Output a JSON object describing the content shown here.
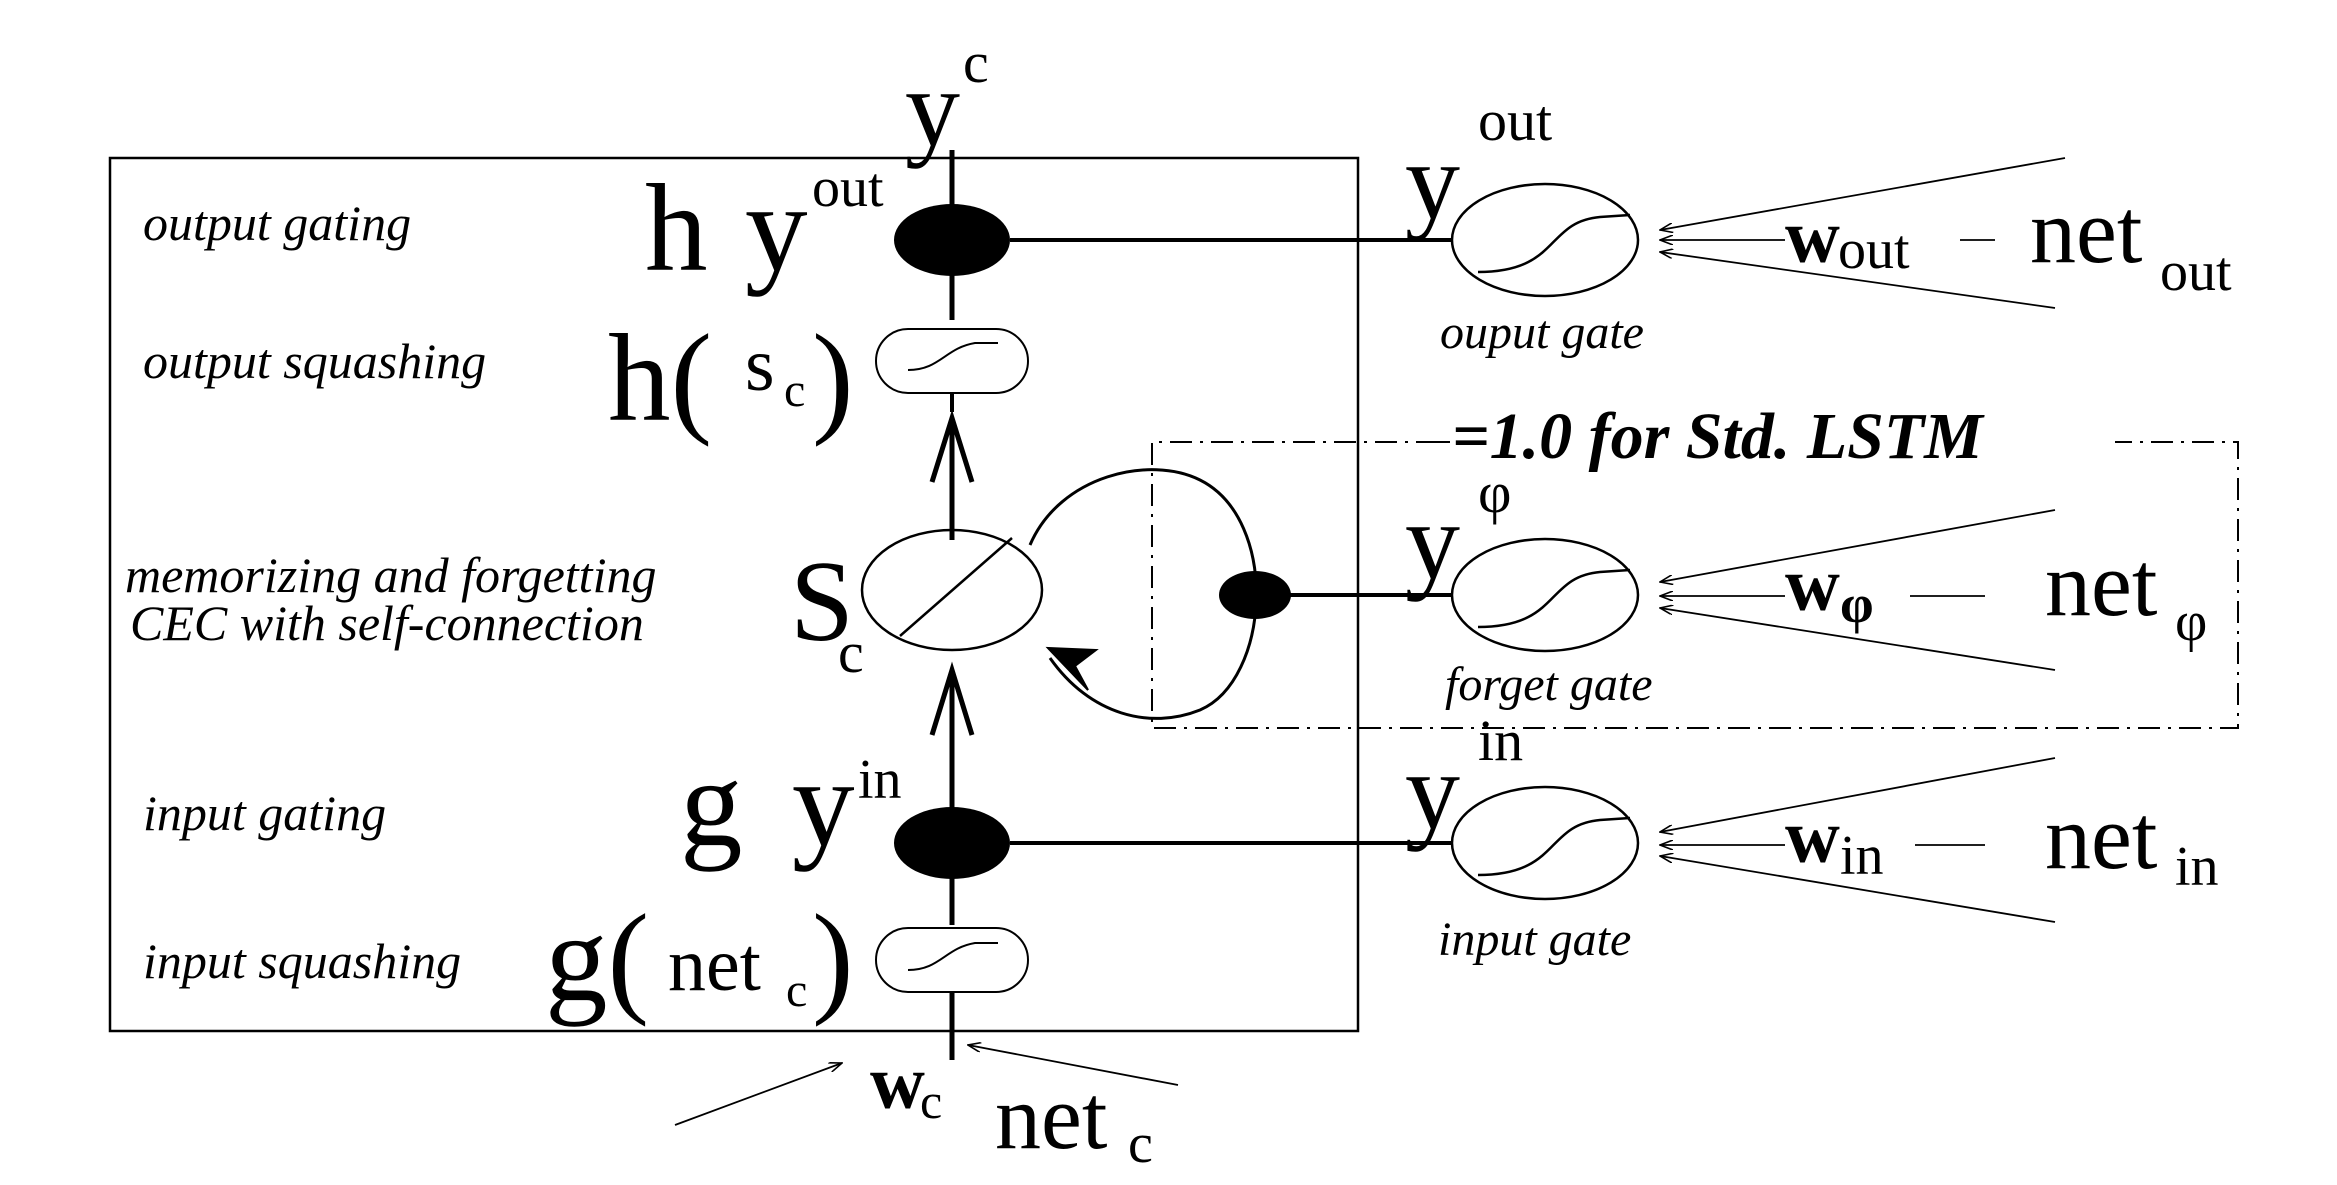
{
  "cell": {
    "output": {
      "base": "y",
      "sup": "c"
    },
    "output_gating_term": {
      "h": "h",
      "y": "y",
      "sup": "out"
    },
    "output_squashing_term": {
      "h": "h(",
      "s": "s",
      "sub": "c",
      "close": ")"
    },
    "state_term": {
      "base": "S",
      "sub": "c"
    },
    "input_gating_term": {
      "g": "g",
      "y": "y",
      "sup": "in"
    },
    "input_squashing_term": {
      "g": "g(",
      "net": "net",
      "sub": "c",
      "close": ")"
    },
    "weight": {
      "base": "w",
      "sub": "c"
    },
    "net": {
      "base": "net",
      "sub": "c"
    }
  },
  "labels": {
    "output_gating": "output gating",
    "output_squashing": "output squashing",
    "memorizing_line1": "memorizing and forgetting",
    "memorizing_line2": "CEC with self-connection",
    "input_gating": "input gating",
    "input_squashing": "input squashing"
  },
  "gates": {
    "output": {
      "y_base": "y",
      "y_sup": "out",
      "caption": "ouput gate",
      "w_base": "w",
      "w_sub": "out",
      "dash": "—",
      "net_base": "net",
      "net_sub": "out"
    },
    "forget": {
      "y_base": "y",
      "y_sup": "φ",
      "caption": "forget gate",
      "w_base": "w",
      "w_sub": "φ",
      "dash": "—",
      "net_base": "net",
      "net_sub": "φ"
    },
    "input": {
      "y_base": "y",
      "y_sup": "in",
      "caption": "input gate",
      "w_base": "w",
      "w_sub": "in",
      "dash": "—",
      "net_base": "net",
      "net_sub": "in"
    }
  },
  "forget_box_label": "=1.0 for Std. LSTM"
}
